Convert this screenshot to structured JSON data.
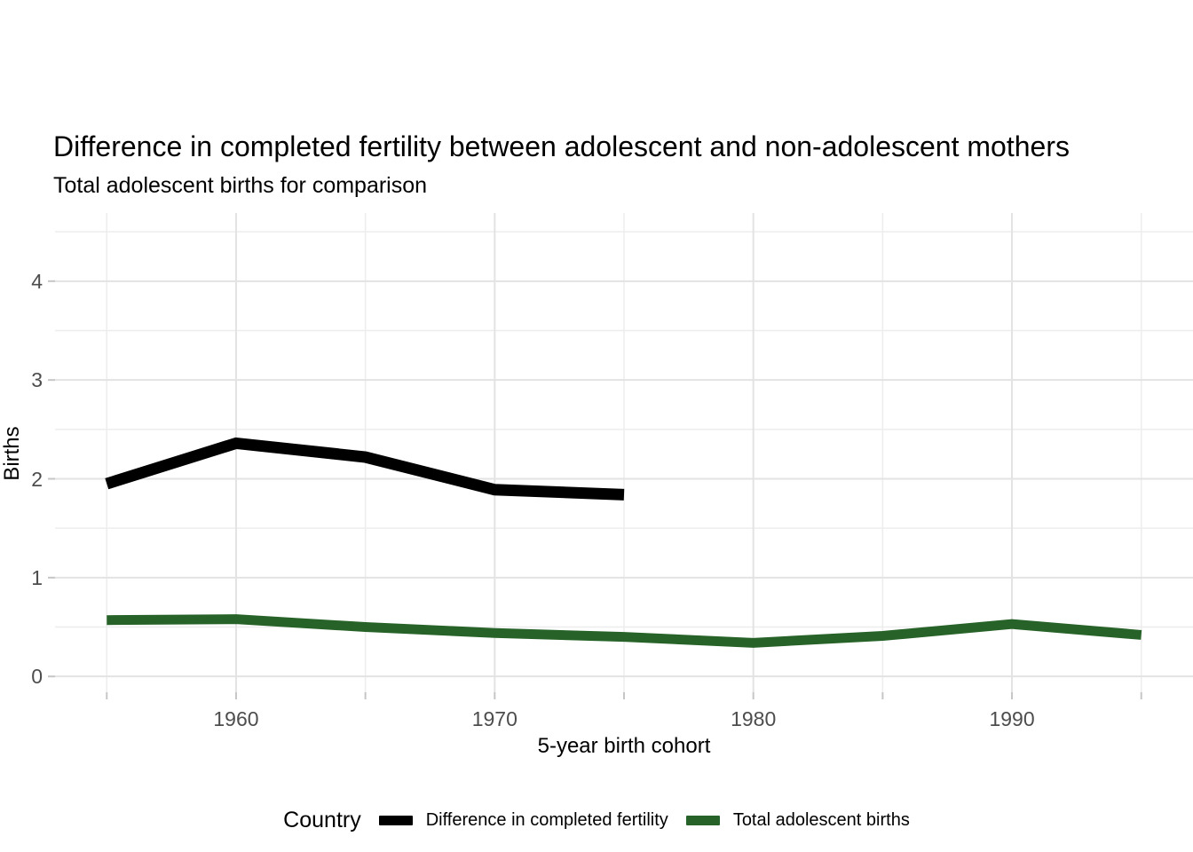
{
  "title": "Difference in completed fertility between adolescent and non-adolescent mothers",
  "subtitle": "Total adolescent births for comparison",
  "chart_data": {
    "type": "line",
    "title": "Difference in completed fertility between adolescent and non-adolescent mothers",
    "subtitle": "Total adolescent births for comparison",
    "xlabel": "5-year birth cohort",
    "ylabel": "Births",
    "legend_title": "Country",
    "legend_position": "bottom",
    "grid": true,
    "xlim": [
      1953,
      1997
    ],
    "ylim": [
      -0.16,
      4.69
    ],
    "x_major_ticks": [
      1960,
      1970,
      1980,
      1990
    ],
    "x_minor_ticks": [
      1955,
      1965,
      1975,
      1985,
      1995
    ],
    "y_major_ticks": [
      0,
      1,
      2,
      3,
      4
    ],
    "y_minor_ticks": [
      0.5,
      1.5,
      2.5,
      3.5,
      4.5
    ],
    "series": [
      {
        "name": "Difference in completed fertility",
        "color": "#000000",
        "linewidth": 13,
        "x": [
          1955,
          1960,
          1965,
          1970,
          1975
        ],
        "values": [
          1.95,
          2.36,
          2.22,
          1.89,
          1.84
        ]
      },
      {
        "name": "Total adolescent births",
        "color": "#276328",
        "linewidth": 11,
        "x": [
          1955,
          1960,
          1965,
          1970,
          1975,
          1980,
          1985,
          1990,
          1995
        ],
        "values": [
          0.57,
          0.58,
          0.5,
          0.44,
          0.4,
          0.34,
          0.41,
          0.53,
          0.42
        ]
      }
    ],
    "style_colors": {
      "grid_major": "#e3e3e3",
      "grid_minor": "#ededed",
      "axis_tick": "#c6c6c6",
      "tick_label": "#4d4d4d"
    }
  }
}
